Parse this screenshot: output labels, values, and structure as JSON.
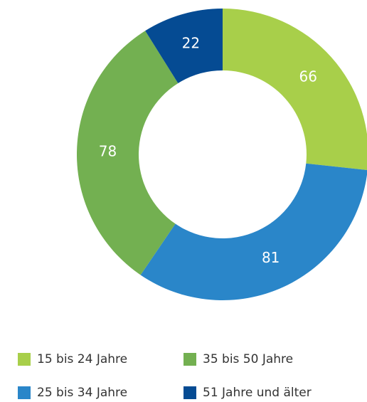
{
  "chart_data": {
    "type": "donut",
    "categories": [
      "15 bis 24 Jahre",
      "25 bis 34 Jahre",
      "35 bis 50 Jahre",
      "51 Jahre und älter"
    ],
    "values": [
      66,
      81,
      78,
      22
    ],
    "colors": [
      "#a8cf4a",
      "#2a86c9",
      "#73b051",
      "#054b93"
    ],
    "legend": "bottom"
  }
}
